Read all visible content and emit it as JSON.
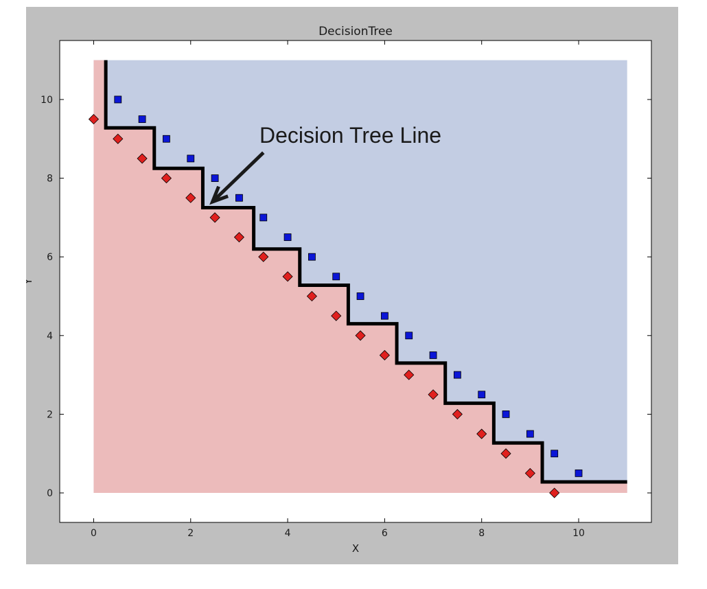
{
  "chart_data": {
    "type": "scatter",
    "title": "DecisionTree",
    "xlabel": "X",
    "ylabel": "Y",
    "xlim": [
      -0.7,
      11.5
    ],
    "ylim": [
      -0.75,
      11.5
    ],
    "x_ticks": [
      "0",
      "2",
      "4",
      "6",
      "8",
      "10"
    ],
    "y_ticks": [
      "0",
      "2",
      "4",
      "6",
      "8",
      "10"
    ],
    "grid": false,
    "regions": {
      "upper_color": "#c3cde3",
      "lower_color": "#ecbbbb",
      "x_range": [
        0,
        11
      ],
      "y_range": [
        0,
        11
      ]
    },
    "series": [
      {
        "marker": "square",
        "color": "#0b16d6",
        "points": [
          [
            0.5,
            10
          ],
          [
            1,
            9.5
          ],
          [
            1.5,
            9
          ],
          [
            2,
            8.5
          ],
          [
            2.5,
            8
          ],
          [
            3,
            7.5
          ],
          [
            3.5,
            7
          ],
          [
            4,
            6.5
          ],
          [
            4.5,
            6
          ],
          [
            5,
            5.5
          ],
          [
            5.5,
            5
          ],
          [
            6,
            4.5
          ],
          [
            6.5,
            4
          ],
          [
            7,
            3.5
          ],
          [
            7.5,
            3
          ],
          [
            8,
            2.5
          ],
          [
            8.5,
            2
          ],
          [
            9,
            1.5
          ],
          [
            9.5,
            1
          ],
          [
            10,
            0.5
          ]
        ]
      },
      {
        "marker": "diamond",
        "color": "#e0201e",
        "points": [
          [
            0,
            9.5
          ],
          [
            0.5,
            9
          ],
          [
            1,
            8.5
          ],
          [
            1.5,
            8
          ],
          [
            2,
            7.5
          ],
          [
            2.5,
            7
          ],
          [
            3,
            6.5
          ],
          [
            3.5,
            6
          ],
          [
            4,
            5.5
          ],
          [
            4.5,
            5
          ],
          [
            5,
            4.5
          ],
          [
            5.5,
            4
          ],
          [
            6,
            3.5
          ],
          [
            6.5,
            3
          ],
          [
            7,
            2.5
          ],
          [
            7.5,
            2
          ],
          [
            8,
            1.5
          ],
          [
            8.5,
            1
          ],
          [
            9,
            0.5
          ],
          [
            9.5,
            0
          ]
        ]
      }
    ],
    "decision_boundary": {
      "color": "#000000",
      "points": [
        [
          0.25,
          11
        ],
        [
          0.25,
          9.28
        ],
        [
          1.25,
          9.28
        ],
        [
          1.25,
          8.25
        ],
        [
          2.25,
          8.25
        ],
        [
          2.25,
          7.25
        ],
        [
          3.3,
          7.25
        ],
        [
          3.3,
          6.2
        ],
        [
          4.25,
          6.2
        ],
        [
          4.25,
          5.28
        ],
        [
          5.25,
          5.28
        ],
        [
          5.25,
          4.3
        ],
        [
          6.25,
          4.3
        ],
        [
          6.25,
          3.3
        ],
        [
          7.25,
          3.3
        ],
        [
          7.25,
          2.28
        ],
        [
          8.25,
          2.28
        ],
        [
          8.25,
          1.27
        ],
        [
          9.25,
          1.27
        ],
        [
          9.25,
          0.28
        ],
        [
          11,
          0.28
        ]
      ]
    },
    "annotation": {
      "text": "Decision Tree Line",
      "arrow_from": [
        3.5,
        8.65
      ],
      "arrow_to": [
        2.45,
        7.4
      ]
    }
  }
}
